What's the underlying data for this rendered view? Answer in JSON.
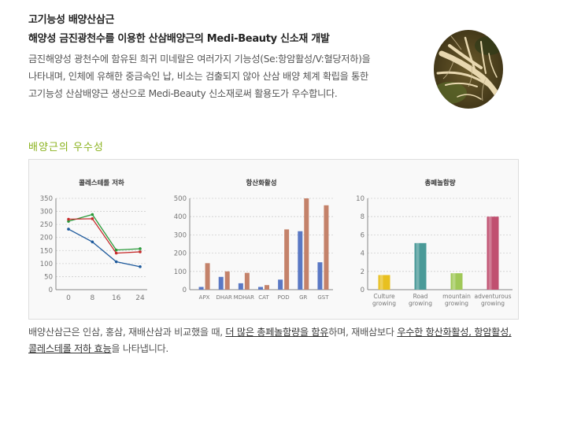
{
  "header": {
    "title": "고기능성 배양산삼근",
    "subtitle": "해양성 금진광천수를 이용한 산삼배양근의 Medi-Beauty 신소재 개발",
    "intro_lines": [
      "금진해양성 광천수에 함유된 희귀 미네랄은 여러가지 기능성(Se:항암활성/V:혈당저하)을",
      "나타내며, 인체에 유해한 중금속인 납, 비소는 검출되지 않아 산삼 배양 체계 확립을 통한",
      "고기능성 산삼배양근 생산으로 Medi-Beauty 신소재로써 활용도가 우수합니다."
    ]
  },
  "photo_icon": "ginseng-root-photo",
  "section_title": "배양근의 우수성",
  "chart_data": [
    {
      "type": "line",
      "title": "콜레스테롤 저하",
      "x": [
        0,
        8,
        16,
        24
      ],
      "ylim": [
        0,
        350
      ],
      "yticks": [
        0,
        50,
        100,
        150,
        200,
        250,
        300,
        350
      ],
      "grid": true,
      "series": [
        {
          "color": "#2a9a3a",
          "values": [
            262,
            288,
            152,
            157
          ]
        },
        {
          "color": "#c62c2c",
          "values": [
            270,
            272,
            140,
            145
          ]
        },
        {
          "color": "#1e5a9c",
          "values": [
            232,
            183,
            107,
            88
          ]
        }
      ]
    },
    {
      "type": "bar",
      "title": "항산화활성",
      "categories": [
        "APX",
        "DHAR",
        "MDHAR",
        "CAT",
        "POD",
        "GR",
        "GST"
      ],
      "ylim": [
        0,
        500
      ],
      "yticks": [
        0,
        100,
        200,
        300,
        400,
        500
      ],
      "grid": true,
      "series": [
        {
          "color": "#5a78c4",
          "values": [
            15,
            70,
            35,
            15,
            55,
            320,
            150
          ]
        },
        {
          "color": "#c4826a",
          "values": [
            145,
            100,
            92,
            25,
            330,
            505,
            462
          ]
        }
      ]
    },
    {
      "type": "bar",
      "title": "총페놀함량",
      "categories": [
        [
          "Culture",
          "growing"
        ],
        [
          "Road",
          "growing"
        ],
        [
          "mountain",
          "growing"
        ],
        [
          "adventurous",
          "growing"
        ]
      ],
      "ylim": [
        0,
        10
      ],
      "yticks": [
        0,
        2,
        4,
        6,
        8,
        10
      ],
      "grid": true,
      "colors": [
        "#e8c020",
        "#4a9a98",
        "#a0c858",
        "#c05070"
      ],
      "values": [
        1.6,
        5.1,
        1.8,
        8.0
      ]
    }
  ],
  "footer": {
    "p1": "배양산삼근은 인삼, 홍삼, 재배산삼과 비교했을 때, ",
    "u1": "더 많은 총페놀함량을 함유",
    "p2": "하며, 재배삼보다 ",
    "u2": "우수한 항산화활성, 항암활성,",
    "u3": "콜레스테롤 저하 효능",
    "p3": "을 나타냅니다."
  }
}
